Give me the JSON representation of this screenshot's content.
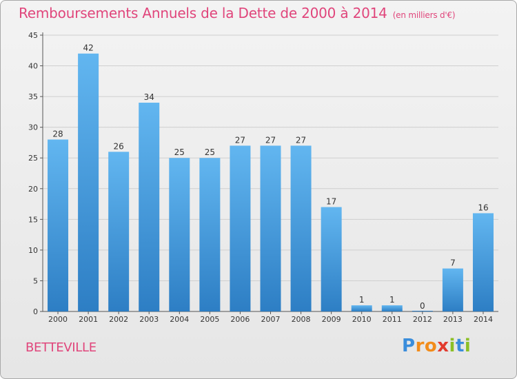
{
  "title": "Remboursements Annuels de la Dette de 2000 à 2014",
  "subtitle": "(en milliers d'€)",
  "commune": "BETTEVILLE",
  "brand": {
    "letters": [
      "P",
      "r",
      "o",
      "x",
      "i",
      "t",
      "i"
    ],
    "colors": [
      "#3a8ddb",
      "#f28c1a",
      "#f28c1a",
      "#e23b2e",
      "#8cbf26",
      "#3a8ddb",
      "#8cbf26"
    ]
  },
  "colors": {
    "accent": "#e0457b",
    "bar_top": "#62b6f0",
    "bar_bottom": "#2d7ec4",
    "grid": "#cfcfcf"
  },
  "chart_data": {
    "type": "bar",
    "title": "Remboursements Annuels de la Dette de 2000 à 2014",
    "xlabel": "",
    "ylabel": "",
    "categories": [
      "2000",
      "2001",
      "2002",
      "2003",
      "2004",
      "2005",
      "2006",
      "2007",
      "2008",
      "2009",
      "2010",
      "2011",
      "2012",
      "2013",
      "2014"
    ],
    "values": [
      28,
      42,
      26,
      34,
      25,
      25,
      27,
      27,
      27,
      17,
      1,
      1,
      0,
      7,
      16
    ],
    "ylim": [
      0,
      45
    ],
    "yticks": [
      0,
      5,
      10,
      15,
      20,
      25,
      30,
      35,
      40,
      45
    ],
    "grid": true
  }
}
